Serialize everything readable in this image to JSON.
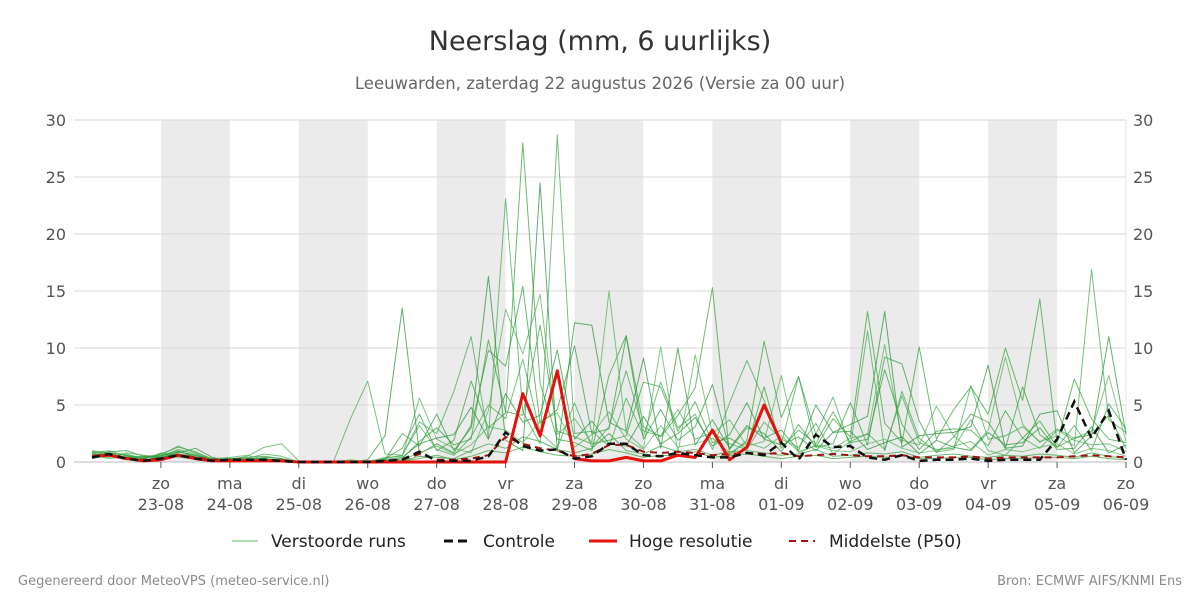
{
  "chart_data": {
    "type": "line",
    "title": "Neerslag (mm, 6 uurlijks)",
    "subtitle": "Leeuwarden, zaterdag 22 augustus 2026 (Versie za 00 uur)",
    "ylim": [
      0,
      30
    ],
    "yticks": [
      0,
      5,
      10,
      15,
      20,
      25,
      30
    ],
    "xlim": [
      0,
      360
    ],
    "x_unit": "hours since run start",
    "day_ticks": [
      {
        "x": 24,
        "day": "zo",
        "date": "23-08"
      },
      {
        "x": 48,
        "day": "ma",
        "date": "24-08"
      },
      {
        "x": 72,
        "day": "di",
        "date": "25-08"
      },
      {
        "x": 96,
        "day": "wo",
        "date": "26-08"
      },
      {
        "x": 120,
        "day": "do",
        "date": "27-08"
      },
      {
        "x": 144,
        "day": "vr",
        "date": "28-08"
      },
      {
        "x": 168,
        "day": "za",
        "date": "29-08"
      },
      {
        "x": 192,
        "day": "zo",
        "date": "30-08"
      },
      {
        "x": 216,
        "day": "ma",
        "date": "31-08"
      },
      {
        "x": 240,
        "day": "di",
        "date": "01-09"
      },
      {
        "x": 264,
        "day": "wo",
        "date": "02-09"
      },
      {
        "x": 288,
        "day": "do",
        "date": "03-09"
      },
      {
        "x": 312,
        "day": "vr",
        "date": "04-09"
      },
      {
        "x": 336,
        "day": "za",
        "date": "05-09"
      },
      {
        "x": 360,
        "day": "zo",
        "date": "06-09"
      }
    ],
    "shaded_bands": [
      [
        24,
        48
      ],
      [
        72,
        96
      ],
      [
        120,
        144
      ],
      [
        168,
        192
      ],
      [
        216,
        240
      ],
      [
        264,
        288
      ],
      [
        312,
        336
      ]
    ],
    "legend": {
      "placement": "bottom",
      "entries": [
        {
          "key": "members",
          "label": "Verstoorde runs",
          "color": "#2ca02c",
          "style": "thin"
        },
        {
          "key": "control",
          "label": "Controle",
          "color": "#111111",
          "style": "dashed"
        },
        {
          "key": "hires",
          "label": "Hoge resolutie",
          "color": "#e3120b",
          "style": "solid"
        },
        {
          "key": "median",
          "label": "Middelste (P50)",
          "color": "#a01010",
          "style": "dashed"
        }
      ]
    },
    "series": {
      "control_x": [
        0,
        6,
        12,
        18,
        24,
        30,
        36,
        42,
        48,
        54,
        60,
        66,
        72,
        78,
        84,
        90,
        96,
        102,
        108,
        114,
        120,
        126,
        132,
        138,
        144,
        150,
        156,
        162,
        168,
        174,
        180,
        186,
        192,
        198,
        204,
        210,
        216,
        222,
        228,
        234,
        240,
        246,
        252,
        258,
        264,
        270,
        276,
        282,
        288,
        294,
        300,
        306,
        312,
        318,
        324,
        330,
        336,
        342,
        348,
        354,
        360
      ],
      "control_values": [
        0.4,
        0.7,
        0.3,
        0.1,
        0.3,
        0.6,
        0.3,
        0.1,
        0.2,
        0.2,
        0.2,
        0.1,
        0.0,
        0.0,
        0.0,
        0.0,
        0.0,
        0.1,
        0.2,
        0.9,
        0.1,
        0.1,
        0.1,
        0.5,
        2.6,
        1.4,
        1.0,
        1.1,
        0.3,
        0.5,
        1.6,
        1.6,
        0.6,
        0.5,
        0.8,
        0.6,
        0.4,
        0.4,
        0.8,
        0.6,
        1.7,
        0.2,
        2.4,
        1.3,
        1.4,
        0.4,
        0.2,
        0.6,
        0.1,
        0.2,
        0.2,
        0.3,
        0.1,
        0.2,
        0.2,
        0.2,
        2.0,
        5.3,
        2.1,
        4.5,
        0.2
      ],
      "hires_x": [
        0,
        6,
        12,
        18,
        24,
        30,
        36,
        42,
        48,
        54,
        60,
        66,
        72,
        78,
        84,
        90,
        96,
        102,
        108,
        114,
        120,
        126,
        132,
        138,
        144,
        150,
        156,
        162,
        168,
        174,
        180,
        186,
        192,
        198,
        204,
        210,
        216,
        222,
        228,
        234,
        240
      ],
      "hires_values": [
        0.5,
        0.6,
        0.3,
        0.1,
        0.2,
        0.6,
        0.3,
        0.1,
        0.1,
        0.1,
        0.1,
        0.1,
        0.0,
        0.0,
        0.0,
        0.0,
        0.0,
        0.0,
        0.0,
        0.0,
        0.0,
        0.0,
        0.0,
        0.0,
        0.0,
        6.0,
        2.3,
        8.0,
        0.3,
        0.1,
        0.1,
        0.4,
        0.1,
        0.1,
        0.6,
        0.4,
        2.8,
        0.2,
        1.3,
        5.0,
        1.7
      ],
      "median_x": [
        0,
        6,
        12,
        18,
        24,
        30,
        36,
        42,
        48,
        54,
        60,
        66,
        72,
        78,
        84,
        90,
        96,
        102,
        108,
        114,
        120,
        126,
        132,
        138,
        144,
        150,
        156,
        162,
        168,
        174,
        180,
        186,
        192,
        198,
        204,
        210,
        216,
        222,
        228,
        234,
        240,
        246,
        252,
        258,
        264,
        270,
        276,
        282,
        288,
        294,
        300,
        306,
        312,
        318,
        324,
        330,
        336,
        342,
        348,
        354,
        360
      ],
      "median_values": [
        0.5,
        0.6,
        0.3,
        0.2,
        0.3,
        0.6,
        0.4,
        0.2,
        0.2,
        0.2,
        0.2,
        0.1,
        0.0,
        0.0,
        0.0,
        0.0,
        0.0,
        0.1,
        0.2,
        0.7,
        0.2,
        0.2,
        0.3,
        0.6,
        2.2,
        1.6,
        1.2,
        1.0,
        0.5,
        0.7,
        1.5,
        1.5,
        0.9,
        0.8,
        0.9,
        0.8,
        0.6,
        0.7,
        0.8,
        0.7,
        0.8,
        0.5,
        0.6,
        0.7,
        0.6,
        0.5,
        0.5,
        0.6,
        0.4,
        0.4,
        0.4,
        0.5,
        0.3,
        0.4,
        0.4,
        0.4,
        0.4,
        0.5,
        0.6,
        0.5,
        0.4
      ],
      "members_x_step": 6,
      "members": [
        [
          1.0,
          0.8,
          0.6,
          0.3,
          0.7,
          1.3,
          0.9,
          0.2,
          0.3,
          0.3,
          0.3,
          0.1,
          0.0,
          0.0,
          0.0,
          0.0,
          0.0,
          0.3,
          1.2,
          4.2,
          1.0,
          1.9,
          7.1,
          3.0,
          4.3,
          28.0,
          6.9,
          2.0,
          1.7,
          1.0,
          7.6,
          11.1,
          3.1,
          2.2,
          4.1,
          6.5,
          15.3,
          0.6,
          1.9,
          10.6,
          3.9,
          7.5,
          1.3,
          3.8,
          2.2,
          13.2,
          3.4,
          1.7,
          10.1,
          2.0,
          4.6,
          6.6,
          4.2,
          10.0,
          5.4,
          14.3,
          1.7,
          7.3,
          3.8,
          2.0,
          1.7
        ],
        [
          0.8,
          1.0,
          0.5,
          0.4,
          0.5,
          1.1,
          0.7,
          0.2,
          0.2,
          0.5,
          1.3,
          1.6,
          0.1,
          0.0,
          0.0,
          3.8,
          7.1,
          0.7,
          0.6,
          3.5,
          2.5,
          6.2,
          11.0,
          2.1,
          23.1,
          4.4,
          1.6,
          28.7,
          2.5,
          2.7,
          1.4,
          5.6,
          2.3,
          7.0,
          3.0,
          4.2,
          1.1,
          5.2,
          8.9,
          5.4,
          1.6,
          7.5,
          2.4,
          5.7,
          1.3,
          11.5,
          1.0,
          6.2,
          2.1,
          0.9,
          1.1,
          6.7,
          2.0,
          2.3,
          3.1,
          1.8,
          2.3,
          1.4,
          16.9,
          3.7,
          2.6
        ],
        [
          0.6,
          0.9,
          1.0,
          0.5,
          0.6,
          0.8,
          1.2,
          0.4,
          0.1,
          0.2,
          0.4,
          0.3,
          0.0,
          0.0,
          0.0,
          0.0,
          0.2,
          2.3,
          13.5,
          0.7,
          1.6,
          0.8,
          3.2,
          16.3,
          1.9,
          1.0,
          24.5,
          0.9,
          12.2,
          12.0,
          3.5,
          2.7,
          9.1,
          1.2,
          10.0,
          1.5,
          3.7,
          1.2,
          3.2,
          2.1,
          2.8,
          1.0,
          5.0,
          2.6,
          3.3,
          4.0,
          13.2,
          1.3,
          2.3,
          2.5,
          2.6,
          3.1,
          8.5,
          1.2,
          1.4,
          4.2,
          4.5,
          0.8,
          2.3,
          11.0,
          2.4
        ],
        [
          0.4,
          0.6,
          0.8,
          0.6,
          0.4,
          0.9,
          0.6,
          0.3,
          0.4,
          0.6,
          0.2,
          0.2,
          0.0,
          0.0,
          0.0,
          0.2,
          0.0,
          0.4,
          0.5,
          5.6,
          2.0,
          1.2,
          0.8,
          4.5,
          13.4,
          9.5,
          14.7,
          2.4,
          3.8,
          1.7,
          15.0,
          2.6,
          1.2,
          10.1,
          0.8,
          9.4,
          2.5,
          3.7,
          1.4,
          1.8,
          7.6,
          0.8,
          1.5,
          1.2,
          2.1,
          2.4,
          10.3,
          1.9,
          1.5,
          4.9,
          2.3,
          1.1,
          2.8,
          9.2,
          3.3,
          1.7,
          2.9,
          2.1,
          2.7,
          7.6,
          1.8
        ],
        [
          0.7,
          0.5,
          0.4,
          0.2,
          0.8,
          0.6,
          0.4,
          0.2,
          0.3,
          0.4,
          0.5,
          0.3,
          0.0,
          0.0,
          0.0,
          0.0,
          0.1,
          0.2,
          2.5,
          1.4,
          4.2,
          1.0,
          3.0,
          9.8,
          8.4,
          15.4,
          3.4,
          4.6,
          10.2,
          2.5,
          2.9,
          11.0,
          2.0,
          4.6,
          1.9,
          3.1,
          6.8,
          1.1,
          3.0,
          2.5,
          0.9,
          3.3,
          1.3,
          1.6,
          5.2,
          1.5,
          9.2,
          8.6,
          3.6,
          0.8,
          2.2,
          4.2,
          3.5,
          1.2,
          6.6,
          2.4,
          1.3,
          3.2,
          1.0,
          5.1,
          2.9
        ],
        [
          0.9,
          0.7,
          0.3,
          0.4,
          0.3,
          0.5,
          0.3,
          0.1,
          0.2,
          0.2,
          0.1,
          0.2,
          0.0,
          0.0,
          0.0,
          0.0,
          0.0,
          0.1,
          0.3,
          1.8,
          3.0,
          1.5,
          2.0,
          10.7,
          4.4,
          4.1,
          12.0,
          2.7,
          2.2,
          1.6,
          1.9,
          2.3,
          7.0,
          6.6,
          2.7,
          5.3,
          1.7,
          2.1,
          1.2,
          6.6,
          1.2,
          2.8,
          1.6,
          4.4,
          1.7,
          2.0,
          8.1,
          3.3,
          1.1,
          2.7,
          2.9,
          2.8,
          1.4,
          4.5,
          2.1,
          3.6,
          1.3,
          2.1,
          2.4,
          4.1,
          1.2
        ],
        [
          0.5,
          0.4,
          0.7,
          0.3,
          0.6,
          1.4,
          0.8,
          0.3,
          0.2,
          0.3,
          0.7,
          0.5,
          0.0,
          0.0,
          0.0,
          0.0,
          0.0,
          0.3,
          0.6,
          3.2,
          1.1,
          0.6,
          2.2,
          5.0,
          3.8,
          9.0,
          2.6,
          1.2,
          5.2,
          1.3,
          3.1,
          8.0,
          2.7,
          2.3,
          4.6,
          2.0,
          2.6,
          1.6,
          1.1,
          3.5,
          2.0,
          1.3,
          3.4,
          0.7,
          1.8,
          2.5,
          1.1,
          5.8,
          1.7,
          1.1,
          1.2,
          3.7,
          1.0,
          0.6,
          2.1,
          1.2,
          2.8,
          1.9,
          1.5,
          1.6,
          0.9
        ],
        [
          0.3,
          0.6,
          0.4,
          0.5,
          0.4,
          0.7,
          0.5,
          0.2,
          0.3,
          0.2,
          0.3,
          0.1,
          0.0,
          0.0,
          0.0,
          0.0,
          0.0,
          0.2,
          0.4,
          1.6,
          2.1,
          2.4,
          4.8,
          2.0,
          6.0,
          3.5,
          4.1,
          9.8,
          2.0,
          3.6,
          1.6,
          1.4,
          4.0,
          1.6,
          2.5,
          3.9,
          1.4,
          2.4,
          5.2,
          2.0,
          1.5,
          2.2,
          1.0,
          2.6,
          2.7,
          1.1,
          1.7,
          2.2,
          0.7,
          1.9,
          1.3,
          1.0,
          2.6,
          1.5,
          1.7,
          3.0,
          1.1,
          1.2,
          3.1,
          0.8,
          1.5
        ],
        [
          0.6,
          0.3,
          0.5,
          0.3,
          0.7,
          0.4,
          0.3,
          0.1,
          0.1,
          0.3,
          0.2,
          0.2,
          0.0,
          0.0,
          0.0,
          0.0,
          0.0,
          0.1,
          0.2,
          0.8,
          1.4,
          0.7,
          1.5,
          3.1,
          2.8,
          1.7,
          3.6,
          4.3,
          1.3,
          2.4,
          4.4,
          2.0,
          1.1,
          3.2,
          1.3,
          1.6,
          2.1,
          0.8,
          1.7,
          1.2,
          2.3,
          0.9,
          1.4,
          1.0,
          0.9,
          1.6,
          2.0,
          1.2,
          0.8,
          1.0,
          1.4,
          1.8,
          0.6,
          1.1,
          0.9,
          1.3,
          1.6,
          0.7,
          1.2,
          1.0,
          0.5
        ],
        [
          0.8,
          0.5,
          0.2,
          0.2,
          0.3,
          0.9,
          0.6,
          0.2,
          0.2,
          0.1,
          0.1,
          0.1,
          0.0,
          0.0,
          0.0,
          0.0,
          0.0,
          0.0,
          0.1,
          0.5,
          0.4,
          0.3,
          1.0,
          1.6,
          1.2,
          2.2,
          1.8,
          1.1,
          0.8,
          1.2,
          2.5,
          1.0,
          0.7,
          1.4,
          0.9,
          1.1,
          0.6,
          0.9,
          1.0,
          0.8,
          0.6,
          0.7,
          1.1,
          0.5,
          0.6,
          0.8,
          0.7,
          0.9,
          0.4,
          0.6,
          0.7,
          0.5,
          0.4,
          0.6,
          0.5,
          0.7,
          0.6,
          0.4,
          0.8,
          0.5,
          0.3
        ],
        [
          0.4,
          0.8,
          0.6,
          0.1,
          0.5,
          1.0,
          0.4,
          0.1,
          0.2,
          0.2,
          0.2,
          0.1,
          0.0,
          0.0,
          0.0,
          0.0,
          0.0,
          0.0,
          0.1,
          0.3,
          0.6,
          0.2,
          0.5,
          1.0,
          0.8,
          1.3,
          0.9,
          0.6,
          0.5,
          0.7,
          1.1,
          0.8,
          0.4,
          0.6,
          0.5,
          0.9,
          0.4,
          0.6,
          0.7,
          0.5,
          0.3,
          0.5,
          0.6,
          0.3,
          0.4,
          0.5,
          0.4,
          0.6,
          0.3,
          0.3,
          0.4,
          0.4,
          0.2,
          0.3,
          0.3,
          0.4,
          0.4,
          0.3,
          0.5,
          0.3,
          0.2
        ]
      ]
    },
    "credits": {
      "left": "Gegenereerd door MeteoVPS (meteo-service.nl)",
      "right": "Bron: ECMWF AIFS/KNMI Ens"
    }
  }
}
